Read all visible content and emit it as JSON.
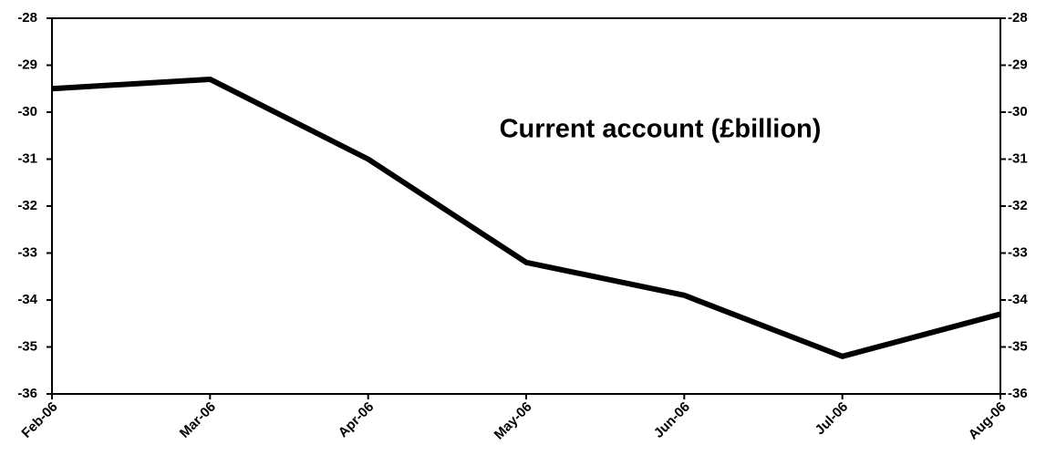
{
  "chart_data": {
    "type": "line",
    "title": "Current account (£billion)",
    "categories": [
      "Feb-06",
      "Mar-06",
      "Apr-06",
      "May-06",
      "Jun-06",
      "Jul-06",
      "Aug-06"
    ],
    "series": [
      {
        "name": "Current account",
        "color": "#000000",
        "values": [
          -29.5,
          -29.3,
          -31.0,
          -33.2,
          -33.9,
          -35.2,
          -34.3
        ]
      }
    ],
    "ylim": [
      -36,
      -28
    ],
    "yticks": [
      -36,
      -35,
      -34,
      -33,
      -32,
      -31,
      -30,
      -29,
      -28
    ],
    "y2lim": [
      -36,
      -28
    ],
    "y2ticks": [
      -36,
      -35,
      -34,
      -33,
      -32,
      -31,
      -30,
      -29,
      -28
    ],
    "grid": false
  }
}
